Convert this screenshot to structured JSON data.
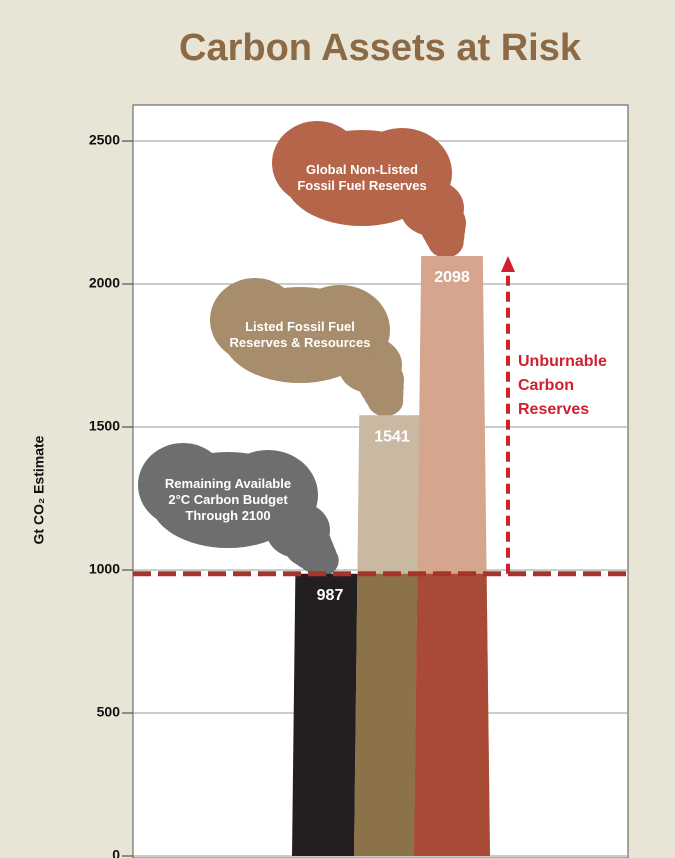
{
  "chart_data": {
    "type": "bar",
    "title": "Carbon Assets at Risk",
    "y_label": "Gt CO₂ Estimate",
    "categories": [
      "Remaining Available\n2°C Carbon Budget\nThrough 2100",
      "Listed Fossil Fuel\nReserves & Resources",
      "Global Non-Listed\nFossil Fuel Reserves"
    ],
    "values": [
      987,
      1541,
      2098
    ],
    "colors": [
      "#231f20",
      "#c9b9a2",
      "#d6a58e"
    ],
    "lower_colors": [
      "#231f20",
      "#8b7249",
      "#a94a36"
    ],
    "smoke_colors": [
      "#6d6e70",
      "#a88d6c",
      "#b5664a"
    ],
    "annotation": "Unburnable\nCarbon\nReserves",
    "annotation_color": "#d11f2e",
    "budget_line_color": "#a8332a",
    "ylim": [
      0,
      2626
    ],
    "yticks": [
      0,
      500,
      1000,
      1500,
      2000,
      2500
    ],
    "grid": true
  }
}
